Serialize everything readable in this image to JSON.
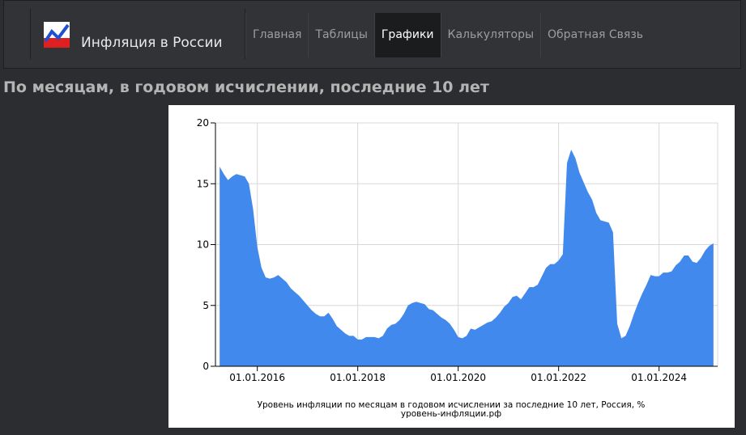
{
  "nav": {
    "brand": "Инфляция в России",
    "items": [
      "Главная",
      "Таблицы",
      "Графики",
      "Калькуляторы",
      "Обратная Связь"
    ],
    "active": 2
  },
  "heading": "По месяцам, в годовом исчислении, последние 10 лет",
  "chart_data": {
    "type": "area",
    "caption": [
      "Уровень инфляции по месяцам в годовом исчислении за последние 10 лет, Россия, %",
      "уровень-инфляции.рф"
    ],
    "color": "#4189ec",
    "grid": true,
    "x": [
      "01.04.2015",
      "01.05.2015",
      "01.06.2015",
      "01.07.2015",
      "01.08.2015",
      "01.09.2015",
      "01.10.2015",
      "01.11.2015",
      "01.12.2015",
      "01.01.2016",
      "01.02.2016",
      "01.03.2016",
      "01.04.2016",
      "01.05.2016",
      "01.06.2016",
      "01.07.2016",
      "01.08.2016",
      "01.09.2016",
      "01.10.2016",
      "01.11.2016",
      "01.12.2016",
      "01.01.2017",
      "01.02.2017",
      "01.03.2017",
      "01.04.2017",
      "01.05.2017",
      "01.06.2017",
      "01.07.2017",
      "01.08.2017",
      "01.09.2017",
      "01.10.2017",
      "01.11.2017",
      "01.12.2017",
      "01.01.2018",
      "01.02.2018",
      "01.03.2018",
      "01.04.2018",
      "01.05.2018",
      "01.06.2018",
      "01.07.2018",
      "01.08.2018",
      "01.09.2018",
      "01.10.2018",
      "01.11.2018",
      "01.12.2018",
      "01.01.2019",
      "01.02.2019",
      "01.03.2019",
      "01.04.2019",
      "01.05.2019",
      "01.06.2019",
      "01.07.2019",
      "01.08.2019",
      "01.09.2019",
      "01.10.2019",
      "01.11.2019",
      "01.12.2019",
      "01.01.2020",
      "01.02.2020",
      "01.03.2020",
      "01.04.2020",
      "01.05.2020",
      "01.06.2020",
      "01.07.2020",
      "01.08.2020",
      "01.09.2020",
      "01.10.2020",
      "01.11.2020",
      "01.12.2020",
      "01.01.2021",
      "01.02.2021",
      "01.03.2021",
      "01.04.2021",
      "01.05.2021",
      "01.06.2021",
      "01.07.2021",
      "01.08.2021",
      "01.09.2021",
      "01.10.2021",
      "01.11.2021",
      "01.12.2021",
      "01.01.2022",
      "01.02.2022",
      "01.03.2022",
      "01.04.2022",
      "01.05.2022",
      "01.06.2022",
      "01.07.2022",
      "01.08.2022",
      "01.09.2022",
      "01.10.2022",
      "01.11.2022",
      "01.12.2022",
      "01.01.2023",
      "01.02.2023",
      "01.03.2023",
      "01.04.2023",
      "01.05.2023",
      "01.06.2023",
      "01.07.2023",
      "01.08.2023",
      "01.09.2023",
      "01.10.2023",
      "01.11.2023",
      "01.12.2023",
      "01.01.2024",
      "01.02.2024",
      "01.03.2024",
      "01.04.2024",
      "01.05.2024",
      "01.06.2024",
      "01.07.2024",
      "01.08.2024",
      "01.09.2024",
      "01.10.2024",
      "01.11.2024",
      "01.12.2024",
      "01.01.2025",
      "01.02.2025"
    ],
    "values": [
      16.4,
      15.8,
      15.3,
      15.6,
      15.8,
      15.7,
      15.6,
      15.0,
      12.9,
      9.8,
      8.1,
      7.3,
      7.2,
      7.3,
      7.5,
      7.2,
      6.9,
      6.4,
      6.1,
      5.8,
      5.4,
      5.0,
      4.6,
      4.3,
      4.1,
      4.1,
      4.4,
      3.9,
      3.3,
      3.0,
      2.7,
      2.5,
      2.5,
      2.2,
      2.2,
      2.4,
      2.4,
      2.4,
      2.3,
      2.5,
      3.1,
      3.4,
      3.5,
      3.8,
      4.3,
      5.0,
      5.2,
      5.3,
      5.2,
      5.1,
      4.7,
      4.6,
      4.3,
      4.0,
      3.8,
      3.5,
      3.0,
      2.4,
      2.3,
      2.5,
      3.1,
      3.0,
      3.2,
      3.4,
      3.6,
      3.7,
      4.0,
      4.4,
      4.9,
      5.2,
      5.7,
      5.8,
      5.5,
      6.0,
      6.5,
      6.5,
      6.7,
      7.4,
      8.1,
      8.4,
      8.4,
      8.7,
      9.2,
      16.7,
      17.8,
      17.1,
      15.9,
      15.1,
      14.3,
      13.7,
      12.6,
      12.0,
      11.9,
      11.8,
      11.0,
      3.5,
      2.3,
      2.5,
      3.3,
      4.3,
      5.2,
      6.0,
      6.7,
      7.5,
      7.4,
      7.4,
      7.7,
      7.7,
      7.8,
      8.3,
      8.6,
      9.1,
      9.1,
      8.6,
      8.5,
      8.9,
      9.5,
      9.9,
      10.1
    ],
    "xlim": [
      "01.03.2015",
      "01.03.2025"
    ],
    "xticks": [
      "01.01.2016",
      "01.01.2018",
      "01.01.2020",
      "01.01.2022",
      "01.01.2024"
    ],
    "ylim": [
      0,
      20
    ],
    "yticks": [
      0,
      5,
      10,
      15,
      20
    ]
  }
}
